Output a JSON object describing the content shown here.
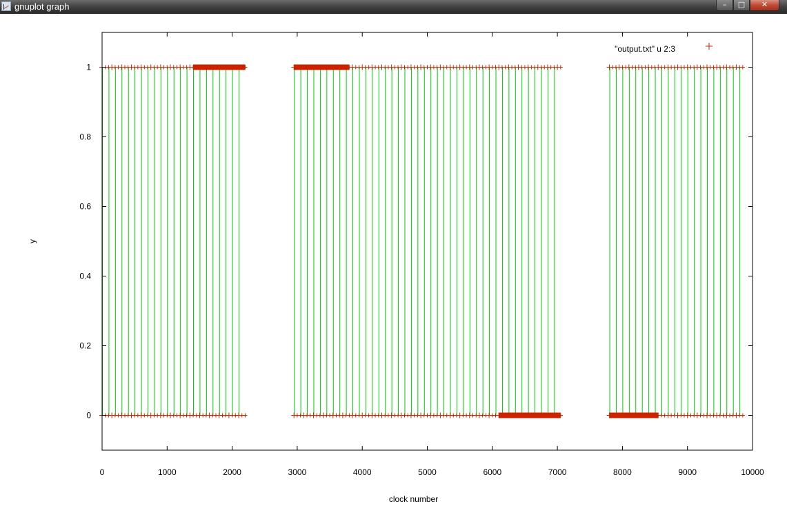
{
  "window": {
    "title": "gnuplot graph",
    "buttons": {
      "minimize": "–",
      "maximize": "□",
      "close": "✕"
    },
    "icon": "gnuplot-app-icon"
  },
  "chart_data": {
    "type": "scatter",
    "title": "",
    "xlabel": "clock number",
    "ylabel": "y",
    "xlim": [
      0,
      10000
    ],
    "ylim": [
      -0.1,
      1.1
    ],
    "xticks": [
      "0",
      "1000",
      "2000",
      "3000",
      "4000",
      "5000",
      "6000",
      "7000",
      "8000",
      "9000",
      "10000"
    ],
    "yticks": [
      "0",
      "0.2",
      "0.4",
      "0.6",
      "0.8",
      "1"
    ],
    "legend": {
      "position": "top-right",
      "entries": [
        "\"output.txt\" u 2:3"
      ]
    },
    "series_style": {
      "points": "plus",
      "point_color": "#cc2200",
      "transition_color": "#00cc00"
    },
    "segments": [
      {
        "x_start": 0,
        "x_end": 2200,
        "period": 50
      },
      {
        "x_start": 2950,
        "x_end": 7050,
        "period": 50
      },
      {
        "x_start": 7800,
        "x_end": 9880,
        "period": 50
      }
    ],
    "constant_runs": [
      {
        "x_start": 1400,
        "x_end": 2200,
        "y": 1
      },
      {
        "x_start": 2950,
        "x_end": 3800,
        "y": 1
      },
      {
        "x_start": 6100,
        "x_end": 7050,
        "y": 0
      },
      {
        "x_start": 7800,
        "x_end": 8550,
        "y": 0
      }
    ],
    "grid": false
  }
}
